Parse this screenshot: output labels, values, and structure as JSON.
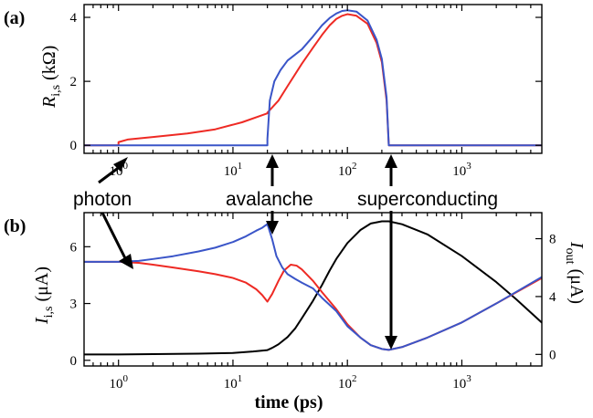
{
  "chart_data": [
    {
      "panel_label": "(a)",
      "type": "line",
      "x_scale": "log",
      "xlim": [
        0.5,
        5000
      ],
      "ylim": [
        -0.25,
        4.4
      ],
      "ylabel_main": "R",
      "ylabel_sub": "i,s",
      "ylabel_unit": "(kΩ)",
      "y_ticks": [
        0,
        2,
        4
      ],
      "x_ticks": [
        {
          "value": 1,
          "base": "10",
          "exp": "0"
        },
        {
          "value": 10,
          "base": "10",
          "exp": "1"
        },
        {
          "value": 100,
          "base": "10",
          "exp": "2"
        },
        {
          "value": 1000,
          "base": "10",
          "exp": "3"
        }
      ],
      "series": [
        {
          "color": "#ee2a24",
          "x": [
            0.5,
            1.0,
            1.0,
            1.2,
            2,
            4,
            7,
            12,
            20,
            20,
            25,
            30,
            40,
            50,
            60,
            70,
            80,
            90,
            100,
            120,
            150,
            180,
            200,
            220,
            230,
            230,
            300,
            500,
            1000,
            5000
          ],
          "y": [
            0,
            0,
            0.1,
            0.18,
            0.26,
            0.37,
            0.5,
            0.72,
            1.0,
            1.02,
            1.4,
            1.85,
            2.55,
            3.05,
            3.45,
            3.75,
            3.95,
            4.05,
            4.1,
            4.05,
            3.8,
            3.2,
            2.6,
            1.4,
            0,
            0,
            0,
            0,
            0,
            0
          ]
        },
        {
          "color": "#3a55c8",
          "x": [
            0.5,
            1,
            5,
            10,
            20,
            20,
            21,
            23,
            26,
            30,
            40,
            50,
            60,
            70,
            80,
            90,
            100,
            120,
            150,
            180,
            200,
            220,
            230,
            230,
            300,
            500,
            1000,
            5000
          ],
          "y": [
            0,
            0,
            0,
            0,
            0,
            0.2,
            1.4,
            2.0,
            2.35,
            2.65,
            3.0,
            3.4,
            3.75,
            3.98,
            4.12,
            4.2,
            4.22,
            4.18,
            3.9,
            3.3,
            2.7,
            1.5,
            0,
            0,
            0,
            0,
            0,
            0
          ]
        }
      ]
    },
    {
      "panel_label": "(b)",
      "type": "line",
      "x_scale": "log",
      "xlim": [
        0.5,
        5000
      ],
      "ylim": [
        -0.3,
        7.8
      ],
      "ylabel_main": "I",
      "ylabel_sub": "i,s",
      "ylabel_unit": "(μA)",
      "y_ticks": [
        0,
        3,
        6
      ],
      "y2lim": [
        -0.8,
        9.8
      ],
      "y2label_main": "I",
      "y2label_sub": "out",
      "y2label_unit": "(μA)",
      "y2_ticks": [
        0,
        4,
        8
      ],
      "xlabel": "time (ps)",
      "x_ticks": [
        {
          "value": 1,
          "base": "10",
          "exp": "0"
        },
        {
          "value": 10,
          "base": "10",
          "exp": "1"
        },
        {
          "value": 100,
          "base": "10",
          "exp": "2"
        },
        {
          "value": 1000,
          "base": "10",
          "exp": "3"
        }
      ],
      "series": [
        {
          "color": "#ee2a24",
          "axis": "left",
          "x": [
            0.5,
            0.8,
            1,
            1.5,
            2,
            3,
            5,
            7,
            10,
            13,
            16,
            18,
            20,
            22,
            25,
            28,
            32,
            36,
            40,
            50,
            60,
            80,
            100,
            130,
            160,
            200,
            230,
            300,
            500,
            1000,
            2000,
            5000
          ],
          "y": [
            5.2,
            5.2,
            5.2,
            5.15,
            5.05,
            4.9,
            4.7,
            4.55,
            4.35,
            4.1,
            3.75,
            3.45,
            3.1,
            3.5,
            4.2,
            4.75,
            5.05,
            5.0,
            4.8,
            4.2,
            3.6,
            2.7,
            1.9,
            1.2,
            0.8,
            0.6,
            0.55,
            0.7,
            1.2,
            2.0,
            3.0,
            4.35
          ]
        },
        {
          "color": "#3a55c8",
          "axis": "left",
          "x": [
            0.5,
            0.8,
            1,
            1.5,
            2,
            3,
            5,
            7,
            10,
            13,
            16,
            18,
            20,
            22,
            24,
            27,
            30,
            35,
            40,
            50,
            60,
            80,
            100,
            130,
            160,
            200,
            230,
            300,
            500,
            1000,
            2000,
            5000
          ],
          "y": [
            5.2,
            5.2,
            5.2,
            5.25,
            5.35,
            5.5,
            5.75,
            5.95,
            6.25,
            6.55,
            6.85,
            7.0,
            7.2,
            6.4,
            5.5,
            4.9,
            4.55,
            4.3,
            4.1,
            3.8,
            3.3,
            2.6,
            1.8,
            1.2,
            0.8,
            0.6,
            0.55,
            0.7,
            1.2,
            2.0,
            3.0,
            4.4
          ]
        },
        {
          "color": "#000000",
          "axis": "right",
          "x": [
            0.5,
            1,
            2,
            5,
            10,
            15,
            20,
            22,
            25,
            30,
            35,
            40,
            50,
            60,
            70,
            80,
            100,
            130,
            160,
            200,
            230,
            300,
            500,
            1000,
            2000,
            3000,
            5000
          ],
          "y": [
            0.0,
            0.0,
            0.02,
            0.05,
            0.1,
            0.2,
            0.3,
            0.45,
            0.7,
            1.2,
            1.8,
            2.5,
            3.7,
            4.8,
            5.8,
            6.6,
            7.7,
            8.6,
            9.05,
            9.2,
            9.2,
            9.0,
            8.3,
            6.8,
            5.0,
            3.8,
            2.2
          ]
        }
      ]
    }
  ],
  "annotations": [
    {
      "text": "photon"
    },
    {
      "text": "avalanche"
    },
    {
      "text": "superconducting"
    }
  ]
}
